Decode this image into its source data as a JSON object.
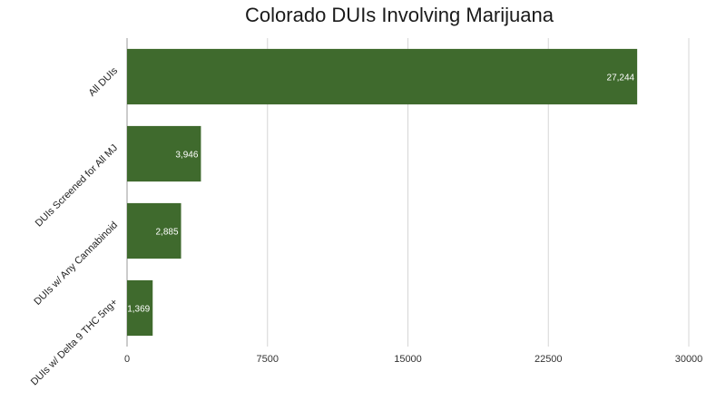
{
  "chart_data": {
    "type": "bar",
    "orientation": "horizontal",
    "title": "Colorado DUIs Involving Marijuana",
    "categories": [
      "All DUIs",
      "DUIs Screened for All MJ",
      "DUIs w/ Any Cannabinoid",
      "DUIs w/ Delta 9 THC  5ng+"
    ],
    "values": [
      27244,
      3946,
      2885,
      1369
    ],
    "value_labels": [
      "27,244",
      "3,946",
      "2,885",
      "1,369"
    ],
    "xticks": [
      "0",
      "7500",
      "15000",
      "22500",
      "30000"
    ],
    "xlim": [
      0,
      30000
    ],
    "grid": true,
    "bar_color": "#3f6a2d",
    "label_color": "#ffffff"
  }
}
